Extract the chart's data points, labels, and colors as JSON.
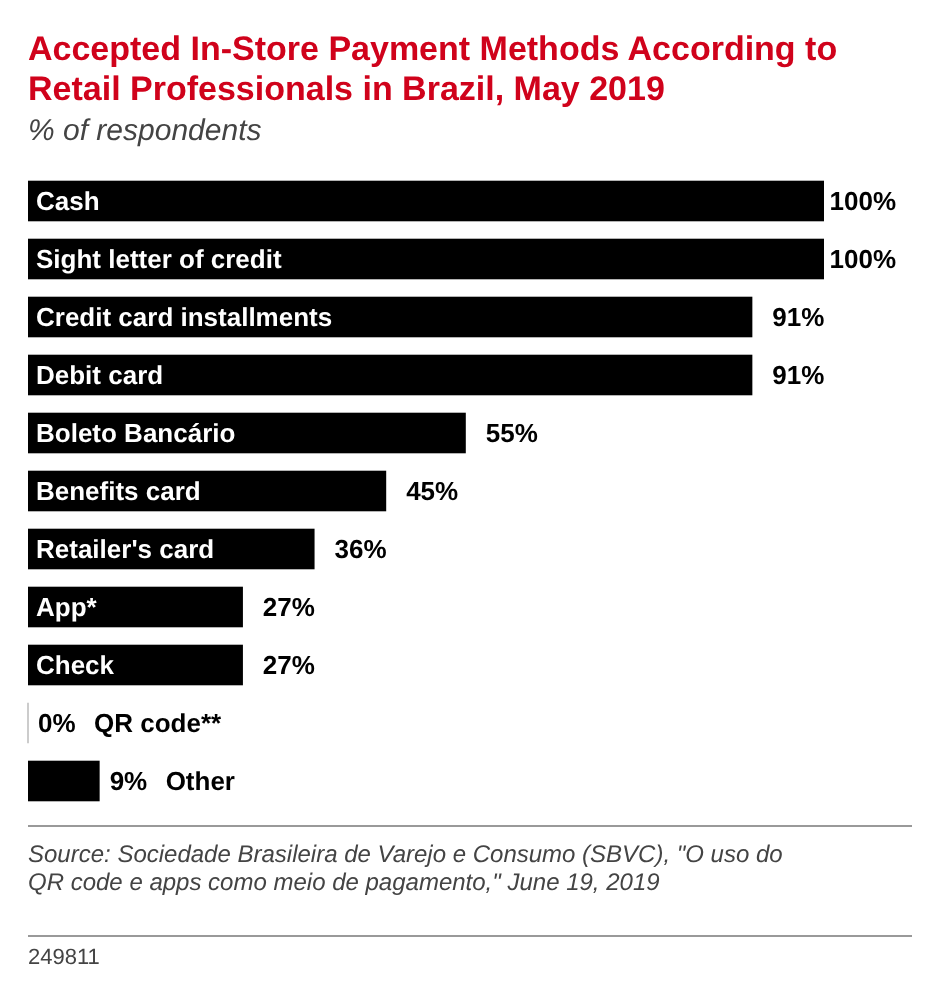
{
  "chart_data": {
    "type": "bar",
    "orientation": "horizontal",
    "title": "Accepted In-Store Payment Methods According to Retail Professionals in Brazil, May 2019",
    "subtitle": "% of respondents",
    "categories": [
      "Cash",
      "Sight letter of credit",
      "Credit card installments",
      "Debit card",
      "Boleto Bancário",
      "Benefits card",
      "Retailer's card",
      "App*",
      "Check",
      "QR code**",
      "Other"
    ],
    "values": [
      100,
      100,
      91,
      91,
      55,
      45,
      36,
      27,
      27,
      0,
      9
    ],
    "value_labels": [
      "100%",
      "100%",
      "91%",
      "91%",
      "55%",
      "45%",
      "36%",
      "27%",
      "27%",
      "0%",
      "9%"
    ],
    "color": "#000000",
    "annotations": [
      "Source: Sociedade Brasileira de Varejo e Consumo (SBVC), \"O uso do QR code e apps como meio de pagamento,\" June 19, 2019",
      "249811"
    ]
  }
}
